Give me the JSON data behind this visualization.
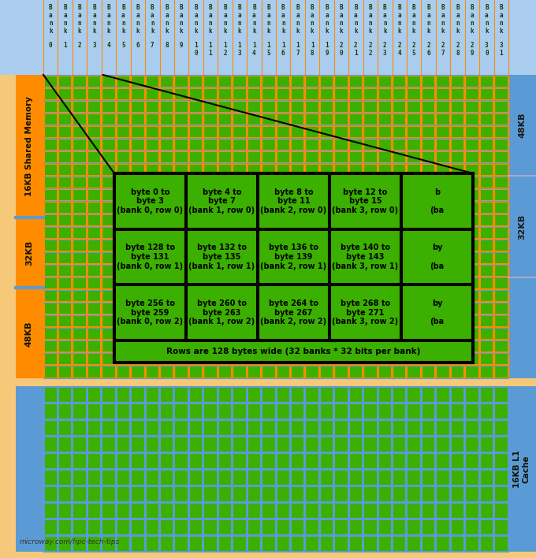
{
  "bg_color": "#f5c87a",
  "orange_color": "#ff8c00",
  "cell_green": "#3cb000",
  "cell_blue": "#5b9bd5",
  "header_blue": "#aaccee",
  "grid_line_orange": "#ff8c00",
  "grid_line_blue": "#5b9bd5",
  "num_banks": 32,
  "sm_rows": 24,
  "l1_rows": 10,
  "box_texts_row0": [
    "byte 0 to\nbyte 3\n(bank 0, row 0)",
    "byte 4 to\nbyte 7\n(bank 1, row 0)",
    "byte 8 to\nbyte 11\n(bank 2, row 0)",
    "byte 12 to\nbyte 15\n(bank 3, row 0)",
    "b\n\n(ba"
  ],
  "box_texts_row1": [
    "byte 128 to\nbyte 131\n(bank 0, row 1)",
    "byte 132 to\nbyte 135\n(bank 1, row 1)",
    "byte 136 to\nbyte 139\n(bank 2, row 1)",
    "byte 140 to\nbyte 143\n(bank 3, row 1)",
    "by\n\n(ba"
  ],
  "box_texts_row2": [
    "byte 256 to\nbyte 259\n(bank 0, row 2)",
    "byte 260 to\nbyte 263\n(bank 1, row 2)",
    "byte 264 to\nbyte 267\n(bank 2, row 2)",
    "byte 268 to\nbyte 271\n(bank 3, row 2)",
    "by\n\n(ba"
  ],
  "footer_text": "Rows are 128 bytes wide (32 banks * 32 bits per bank)",
  "watermark": "microway.com/hpc-tech-tips",
  "label_16kb_sm": "16KB Shared Memory",
  "label_32kb": "32KB",
  "label_48kb": "48KB",
  "label_48kb_r": "48KB",
  "label_32kb_r": "32KB",
  "label_16kb_l1": "16KB L1\nCache"
}
